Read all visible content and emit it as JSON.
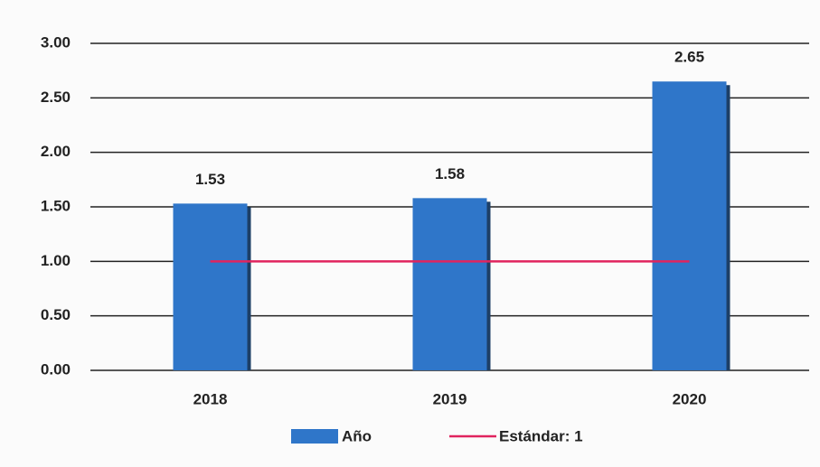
{
  "chart_data": {
    "type": "bar",
    "categories": [
      "2018",
      "2019",
      "2020"
    ],
    "series": [
      {
        "name": "Año",
        "type": "bar",
        "color": "#2f76c9",
        "values": [
          1.53,
          1.58,
          2.65
        ]
      },
      {
        "name": "Estándar: 1",
        "type": "line",
        "color": "#e0245e",
        "values": [
          1,
          1,
          1
        ]
      }
    ],
    "ylim": [
      0,
      3
    ],
    "yticks": [
      {
        "value": 0,
        "label": "0.00"
      },
      {
        "value": 0.5,
        "label": "0.50"
      },
      {
        "value": 1,
        "label": "1.00"
      },
      {
        "value": 1.5,
        "label": "1.50"
      },
      {
        "value": 2,
        "label": "2.00"
      },
      {
        "value": 2.5,
        "label": "2.50"
      },
      {
        "value": 3,
        "label": "3.00"
      }
    ],
    "grid": true,
    "legend": "bottom"
  }
}
